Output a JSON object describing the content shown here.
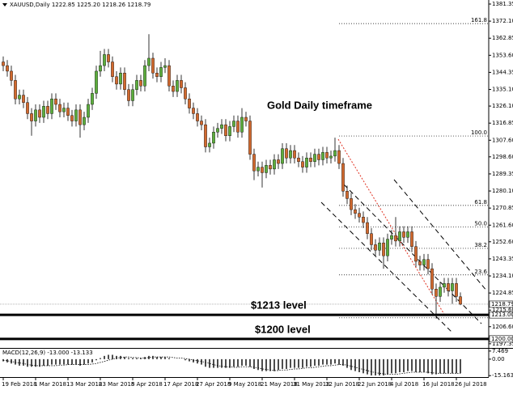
{
  "chart_data": [
    {
      "type": "candlestick",
      "title": "XAUUSD,Daily  1222.85 1225.20 1218.26 1218.79",
      "annotation": "Gold Daily timeframe",
      "categories": [
        "19 Feb 2018",
        null,
        null,
        null,
        null,
        null,
        null,
        null,
        "1 Mar 2018",
        null,
        null,
        null,
        null,
        null,
        null,
        null,
        "13 Mar 2018",
        null,
        null,
        null,
        null,
        null,
        null,
        null,
        "23 Mar 2018",
        null,
        null,
        null,
        null,
        null,
        null,
        null,
        "5 Apr 2018",
        null,
        null,
        null,
        null,
        null,
        null,
        null,
        "17 Apr 2018",
        null,
        null,
        null,
        null,
        null,
        null,
        null,
        "27 Apr 2018",
        null,
        null,
        null,
        null,
        null,
        null,
        null,
        "9 May 2018",
        null,
        null,
        null,
        null,
        null,
        null,
        null,
        "21 May 2018",
        null,
        null,
        null,
        null,
        null,
        null,
        null,
        "31 May 2018",
        null,
        null,
        null,
        null,
        null,
        null,
        null,
        "12 Jun 2018",
        null,
        null,
        null,
        null,
        null,
        null,
        null,
        "22 Jun 2018",
        null,
        null,
        null,
        null,
        null,
        null,
        null,
        "4 Jul 2018",
        null,
        null,
        null,
        null,
        null,
        null,
        null,
        "16 Jul 2018",
        null,
        null,
        null,
        null,
        null,
        null,
        null,
        "26 Jul 2018",
        null
      ],
      "open": [
        1350,
        1348,
        1345,
        1340,
        1330,
        1332,
        1328,
        1322,
        1318,
        1324,
        1320,
        1326,
        1322,
        1330,
        1327,
        1323,
        1325,
        1321,
        1318,
        1324,
        1316,
        1320,
        1327,
        1333,
        1345,
        1348,
        1354,
        1350,
        1342,
        1338,
        1344,
        1335,
        1329,
        1335,
        1340,
        1337,
        1348,
        1352,
        1344,
        1342,
        1347,
        1348,
        1337,
        1334,
        1340,
        1336,
        1330,
        1325,
        1322,
        1318,
        1316,
        1304,
        1306,
        1312,
        1314,
        1316,
        1310,
        1315,
        1318,
        1312,
        1320,
        1318,
        1300,
        1291,
        1293,
        1290,
        1294,
        1292,
        1297,
        1295,
        1303,
        1298,
        1302,
        1298,
        1296,
        1293,
        1298,
        1296,
        1300,
        1297,
        1301,
        1298,
        1299,
        1302,
        1295,
        1280,
        1276,
        1270,
        1268,
        1266,
        1263,
        1257,
        1251,
        1248,
        1252,
        1245,
        1254,
        1256,
        1253,
        1258,
        1255,
        1258,
        1250,
        1242,
        1240,
        1243,
        1238,
        1227,
        1223,
        1228,
        1230,
        1226,
        1230,
        1222.85
      ],
      "high": [
        1353,
        1351,
        1348,
        1343,
        1335,
        1335,
        1331,
        1325,
        1327,
        1327,
        1329,
        1329,
        1333,
        1333,
        1330,
        1328,
        1328,
        1324,
        1327,
        1327,
        1323,
        1330,
        1336,
        1348,
        1356,
        1357,
        1357,
        1353,
        1345,
        1347,
        1347,
        1338,
        1338,
        1343,
        1343,
        1351,
        1365,
        1355,
        1347,
        1350,
        1352,
        1351,
        1340,
        1343,
        1343,
        1339,
        1333,
        1328,
        1325,
        1321,
        1319,
        1309,
        1315,
        1317,
        1319,
        1319,
        1318,
        1321,
        1321,
        1325,
        1323,
        1321,
        1303,
        1296,
        1296,
        1297,
        1297,
        1300,
        1300,
        1306,
        1306,
        1305,
        1305,
        1301,
        1299,
        1301,
        1301,
        1303,
        1303,
        1304,
        1304,
        1302,
        1309,
        1305,
        1298,
        1283,
        1279,
        1273,
        1271,
        1269,
        1266,
        1260,
        1254,
        1255,
        1255,
        1257,
        1259,
        1266,
        1261,
        1261,
        1261,
        1261,
        1253,
        1245,
        1246,
        1246,
        1241,
        1230,
        1231,
        1233,
        1233,
        1233,
        1233,
        1225.2
      ],
      "low": [
        1345,
        1342,
        1337,
        1327,
        1327,
        1325,
        1319,
        1310,
        1315,
        1317,
        1317,
        1319,
        1319,
        1324,
        1320,
        1320,
        1318,
        1315,
        1315,
        1309,
        1313,
        1317,
        1324,
        1330,
        1342,
        1345,
        1347,
        1339,
        1335,
        1335,
        1332,
        1326,
        1326,
        1332,
        1334,
        1334,
        1345,
        1341,
        1339,
        1339,
        1344,
        1334,
        1331,
        1331,
        1333,
        1327,
        1322,
        1319,
        1315,
        1313,
        1301,
        1301,
        1303,
        1309,
        1311,
        1307,
        1307,
        1312,
        1309,
        1309,
        1315,
        1297,
        1286,
        1288,
        1282,
        1287,
        1289,
        1289,
        1292,
        1292,
        1295,
        1295,
        1295,
        1293,
        1290,
        1290,
        1293,
        1293,
        1294,
        1294,
        1295,
        1295,
        1296,
        1292,
        1277,
        1273,
        1267,
        1265,
        1263,
        1260,
        1254,
        1248,
        1245,
        1245,
        1238,
        1242,
        1251,
        1250,
        1250,
        1252,
        1252,
        1247,
        1239,
        1237,
        1237,
        1235,
        1224,
        1211,
        1220,
        1225,
        1223,
        1219,
        1220,
        1218.26
      ],
      "close": [
        1348,
        1345,
        1340,
        1330,
        1332,
        1328,
        1322,
        1318,
        1324,
        1320,
        1326,
        1322,
        1330,
        1327,
        1323,
        1325,
        1321,
        1318,
        1324,
        1316,
        1320,
        1327,
        1333,
        1345,
        1348,
        1354,
        1350,
        1342,
        1338,
        1344,
        1335,
        1329,
        1335,
        1340,
        1337,
        1348,
        1352,
        1344,
        1342,
        1347,
        1348,
        1337,
        1334,
        1340,
        1336,
        1330,
        1325,
        1322,
        1318,
        1316,
        1304,
        1306,
        1312,
        1314,
        1316,
        1310,
        1315,
        1318,
        1312,
        1320,
        1318,
        1300,
        1291,
        1293,
        1290,
        1294,
        1292,
        1297,
        1295,
        1303,
        1298,
        1302,
        1298,
        1296,
        1293,
        1298,
        1296,
        1300,
        1297,
        1301,
        1298,
        1299,
        1302,
        1295,
        1280,
        1276,
        1270,
        1268,
        1266,
        1263,
        1257,
        1251,
        1248,
        1252,
        1245,
        1254,
        1256,
        1253,
        1258,
        1255,
        1258,
        1250,
        1242,
        1240,
        1243,
        1238,
        1227,
        1223,
        1228,
        1230,
        1226,
        1230,
        1223,
        1218.79
      ],
      "up_color": "#5cae3c",
      "down_color": "#d2692e",
      "ylim": [
        1195.1,
        1383.54
      ],
      "yticks": [
        1381.35,
        {
          "value": 1372.1,
          "label": "1372.10"
        },
        1362.85,
        {
          "value": 1353.6,
          "label": "1353.60"
        },
        1344.35,
        {
          "value": 1335.1,
          "label": "1335.10"
        },
        {
          "value": 1326.1,
          "label": "1326.10"
        },
        1316.85,
        {
          "value": 1307.6,
          "label": "1307.60"
        },
        {
          "value": 1298.6,
          "label": "1298.60"
        },
        1289.35,
        {
          "value": 1280.1,
          "label": "1280.10"
        },
        1270.85,
        {
          "value": 1261.6,
          "label": "1261.60"
        },
        {
          "value": 1252.6,
          "label": "1252.60"
        },
        1243.35,
        {
          "value": 1234.1,
          "label": "1234.10"
        },
        1224.85,
        {
          "value": 1215.6,
          "label": "1215.60"
        },
        {
          "value": 1206.6,
          "label": "1206.60"
        },
        1197.35
      ],
      "fib": {
        "high": 1309.9,
        "low": 1211.4,
        "levels": [
          {
            "value": 161.8,
            "label": "161.8"
          },
          {
            "value": 100,
            "label": "100.0"
          },
          {
            "value": 61.8,
            "label": "61.8"
          },
          {
            "value": 50,
            "label": "50.0"
          },
          {
            "value": 38.2,
            "label": "38.2"
          },
          {
            "value": 23.6,
            "label": "23.6"
          }
        ]
      },
      "levels": [
        {
          "name": "$1213 level",
          "value": 1213,
          "label": "1213.00"
        },
        {
          "name": "$1200 level",
          "value": 1200,
          "label": "1200.00"
        }
      ]
    },
    {
      "type": "macd",
      "title": "MACD(12,26,9) -13.000 -13.133",
      "values": [
        -2,
        -3,
        -4,
        -5,
        -6,
        -6,
        -7,
        -7,
        -7,
        -7,
        -6,
        -6,
        -5,
        -5,
        -5,
        -5,
        -5,
        -5,
        -5,
        -6,
        -5,
        -4,
        -3,
        -1,
        1,
        3,
        4,
        4,
        3,
        3,
        2,
        1,
        1,
        1,
        1,
        2,
        3,
        3,
        2,
        2,
        2,
        1,
        0,
        0,
        0,
        -1,
        -2,
        -3,
        -4,
        -5,
        -7,
        -8,
        -8,
        -8,
        -8,
        -8,
        -8,
        -7,
        -7,
        -6,
        -6,
        -7,
        -9,
        -10,
        -11,
        -11,
        -11,
        -11,
        -10,
        -9,
        -9,
        -8,
        -8,
        -8,
        -8,
        -7,
        -7,
        -6,
        -6,
        -5,
        -5,
        -5,
        -4,
        -5,
        -6,
        -8,
        -10,
        -11,
        -12,
        -13,
        -14,
        -15,
        -15,
        -15,
        -15,
        -14,
        -13,
        -13,
        -12,
        -12,
        -11,
        -11,
        -12,
        -12,
        -12,
        -13,
        -14,
        -14,
        -13,
        -13,
        -13,
        -13,
        -13,
        -13.0
      ],
      "signal": [
        -1,
        -1.5,
        -2,
        -3,
        -3.5,
        -4,
        -5,
        -5.5,
        -6,
        -6,
        -6,
        -6,
        -6,
        -6,
        -5.5,
        -5.5,
        -5,
        -5,
        -5,
        -5,
        -5,
        -5,
        -4.5,
        -4,
        -3,
        -2,
        -1,
        0,
        1,
        1.5,
        2,
        2,
        1.5,
        1.5,
        1,
        1,
        1.5,
        2,
        2,
        2,
        2,
        2,
        1.5,
        1,
        1,
        0.5,
        0,
        -1,
        -1.5,
        -2,
        -3,
        -4,
        -5,
        -6,
        -6.5,
        -7,
        -7,
        -7.5,
        -7.5,
        -7,
        -7,
        -7,
        -7.5,
        -8,
        -9,
        -9.5,
        -10,
        -10.5,
        -10.5,
        -10,
        -10,
        -9.5,
        -9,
        -9,
        -8.5,
        -8,
        -8,
        -7.5,
        -7,
        -6.5,
        -6,
        -6,
        -5.5,
        -5,
        -5,
        -5.5,
        -6.5,
        -7.5,
        -8.5,
        -9.5,
        -10.5,
        -11.5,
        -12.5,
        -13,
        -13.5,
        -14,
        -14,
        -14,
        -13.5,
        -13,
        -12.5,
        -12,
        -12,
        -12,
        -12,
        -12,
        -12.5,
        -13,
        -13,
        -13,
        -13,
        -13,
        -13,
        -13.133
      ],
      "ylim": [
        -16.5,
        9.6
      ],
      "yticks": [
        7.469,
        {
          "value": 0,
          "label": "0.00"
        },
        -15.163
      ]
    }
  ]
}
